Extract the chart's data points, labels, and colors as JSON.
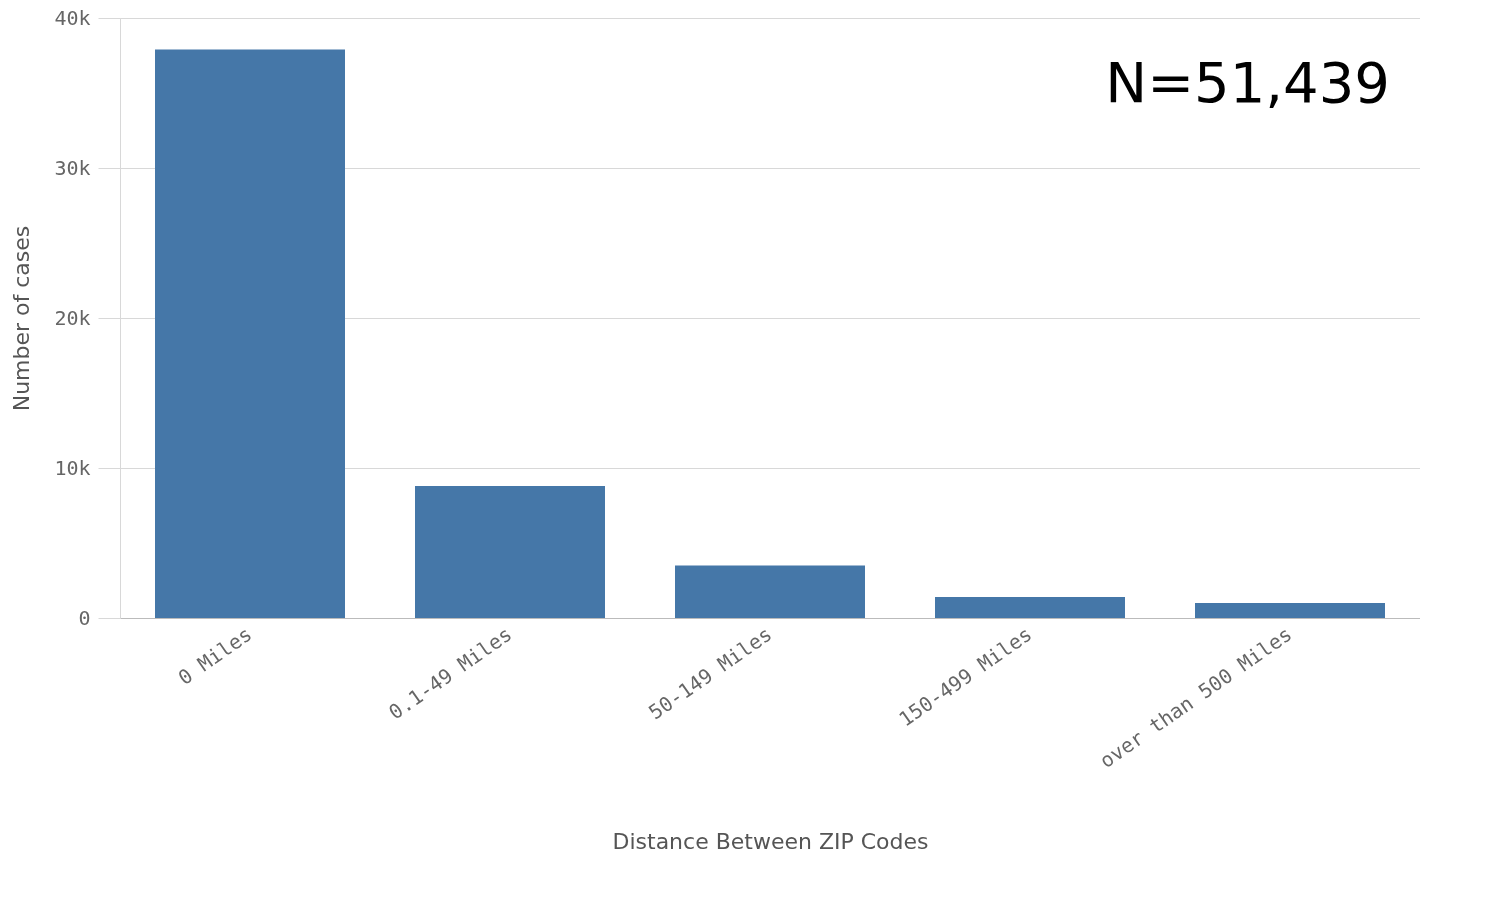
{
  "chart_data": {
    "type": "bar",
    "xlabel": "Distance Between ZIP Codes",
    "ylabel": "Number of cases",
    "categories": [
      "0 Miles",
      "0.1-49 Miles",
      "50-149 Miles",
      "150-499 Miles",
      "over than 500 Miles"
    ],
    "values": [
      37900,
      8800,
      3500,
      1400,
      1000
    ],
    "color": "#4577a8",
    "ylim": [
      0,
      40000
    ],
    "yticks": [
      {
        "value": 0,
        "label": "0"
      },
      {
        "value": 10000,
        "label": "10k"
      },
      {
        "value": 20000,
        "label": "20k"
      },
      {
        "value": 30000,
        "label": "30k"
      },
      {
        "value": 40000,
        "label": "40k"
      }
    ],
    "grid": "y",
    "annotations": [
      "N=51,439"
    ]
  }
}
